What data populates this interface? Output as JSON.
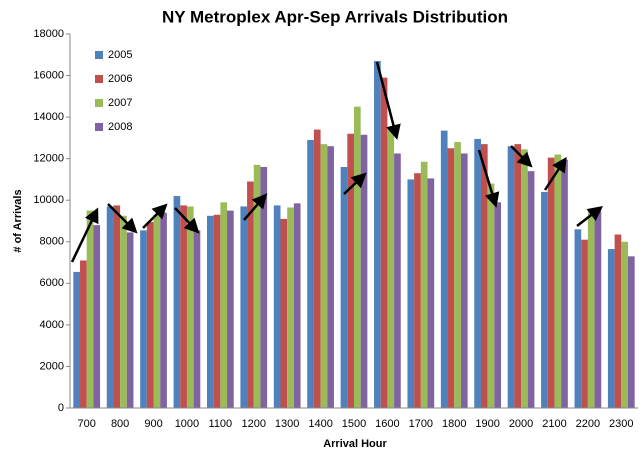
{
  "chart_data": {
    "type": "bar",
    "title": "NY Metroplex Apr-Sep Arrivals Distribution",
    "x_label": "Arrival Hour",
    "y_label": "# of Arrivals",
    "categories": [
      "700",
      "800",
      "900",
      "1000",
      "1100",
      "1200",
      "1300",
      "1400",
      "1500",
      "1600",
      "1700",
      "1800",
      "1900",
      "2000",
      "2100",
      "2200",
      "2300"
    ],
    "series": [
      {
        "name": "2005",
        "color": "#4f81bd",
        "values": [
          6550,
          9700,
          8550,
          10200,
          9250,
          9700,
          9750,
          12900,
          11600,
          16700,
          11000,
          13350,
          12950,
          12600,
          10400,
          8600,
          7650
        ]
      },
      {
        "name": "2006",
        "color": "#c0504d",
        "values": [
          7100,
          9750,
          8950,
          9750,
          9300,
          10900,
          9100,
          13400,
          13200,
          15900,
          11300,
          12500,
          12700,
          12700,
          12050,
          8100,
          8350
        ]
      },
      {
        "name": "2007",
        "color": "#9bbb59",
        "values": [
          9500,
          9250,
          9300,
          9700,
          9900,
          11700,
          9650,
          12700,
          14500,
          13400,
          11850,
          12800,
          10800,
          12450,
          12200,
          9450,
          8000
        ]
      },
      {
        "name": "2008",
        "color": "#8064a2",
        "values": [
          8800,
          8450,
          9400,
          8550,
          9500,
          11600,
          9850,
          12600,
          13150,
          12250,
          11050,
          12250,
          9900,
          11400,
          11950,
          9600,
          7300
        ]
      }
    ],
    "ylim": [
      0,
      18000
    ],
    "yticks": [
      0,
      2000,
      4000,
      6000,
      8000,
      10000,
      12000,
      14000,
      16000,
      18000
    ],
    "grid": false,
    "legend": "top-left"
  }
}
